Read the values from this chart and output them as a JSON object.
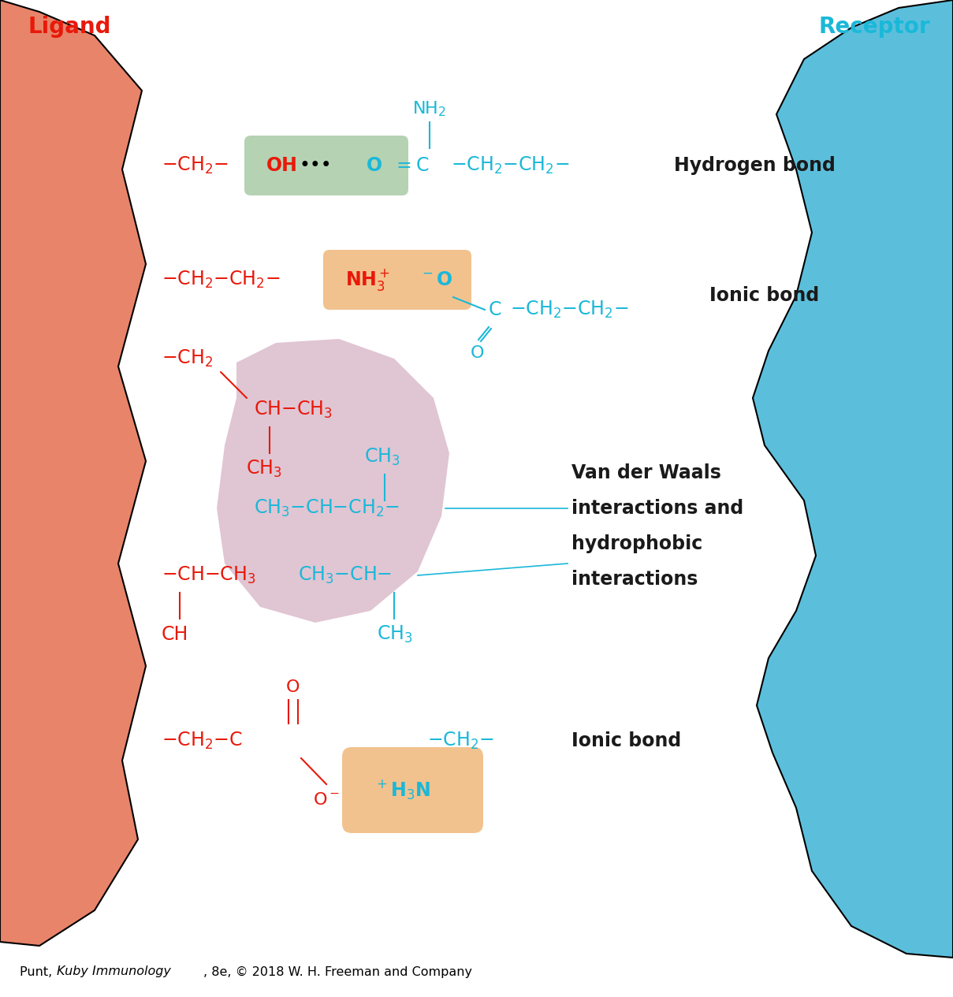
{
  "fig_width": 12.09,
  "fig_height": 12.65,
  "bg_color": "#ffffff",
  "ligand_color": "#E8846A",
  "receptor_color": "#5BBFDC",
  "red": "#E8190A",
  "cyan": "#1AB8D8",
  "black": "#1a1a1a",
  "green_highlight": "#9DC49A",
  "orange_highlight": "#F0B87A",
  "pink_highlight": "#C896B0",
  "ligand_label": "Ligand",
  "receptor_label": "Receptor",
  "caption_plain": "Punt, ",
  "caption_italic": "Kuby Immunology",
  "caption_rest": ", 8e, © 2018 W. H. Freeman and Company"
}
